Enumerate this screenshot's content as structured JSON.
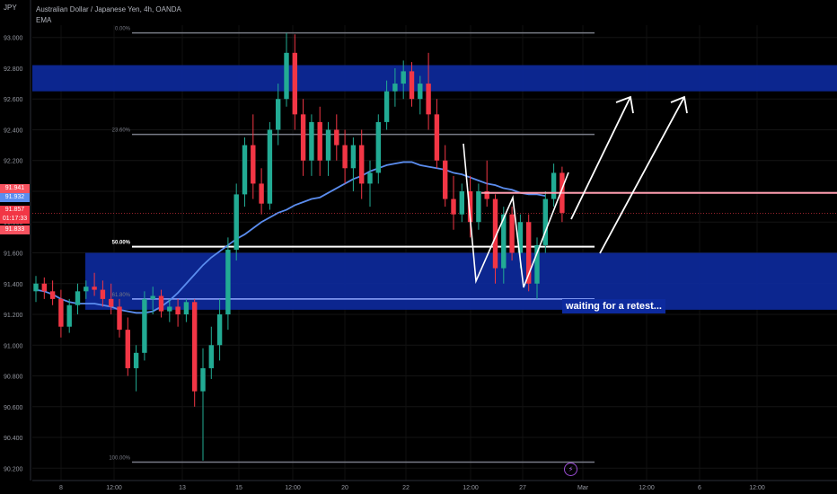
{
  "header": {
    "ticker": "JPY",
    "title": "Australian Dollar / Japanese Yen, 4h, OANDA",
    "indicator": "EMA"
  },
  "price_tags": [
    {
      "value": "91.941",
      "color": "#f7525f",
      "text_color": "#ffffff"
    },
    {
      "value": "91.932",
      "color": "#5b8def",
      "text_color": "#ffffff"
    },
    {
      "value": "91.857",
      "color": "#f23645",
      "text_color": "#ffffff"
    },
    {
      "value": "01:17:33",
      "color": "#f23645",
      "text_color": "#ffffff"
    },
    {
      "value": "91.833",
      "color": "#f7525f",
      "text_color": "#ffffff"
    }
  ],
  "annotation": "waiting for a retest...",
  "colors": {
    "up": "#22ab94",
    "down": "#f23645",
    "zone": "#0d2a9e",
    "ema": "#5b8def",
    "fib": "#787b86",
    "arrow": "#ffffff",
    "resistance": "#ff9eb0"
  },
  "chart_data": {
    "type": "candlestick",
    "y_axis": {
      "range": [
        90.12,
        93.08
      ],
      "ticks": [
        "93.000",
        "92.800",
        "92.600",
        "92.400",
        "92.200",
        "92.000",
        "91.800",
        "91.600",
        "91.400",
        "91.200",
        "91.000",
        "90.800",
        "90.600",
        "90.400",
        "90.200"
      ]
    },
    "x_axis": {
      "ticks": [
        "8",
        "12:00",
        "13",
        "15",
        "12:00",
        "20",
        "22",
        "12:00",
        "27",
        "Mar",
        "12:00",
        "6",
        "12:00"
      ]
    },
    "fib_levels": [
      {
        "label": "0.00%",
        "price": 93.03
      },
      {
        "label": "23.60%",
        "price": 92.37
      },
      {
        "label": "50.00%",
        "price": 91.64
      },
      {
        "label": "61.80%",
        "price": 91.3
      },
      {
        "label": "100.00%",
        "price": 90.24
      }
    ],
    "zones": [
      {
        "name": "supply",
        "from": 92.65,
        "to": 92.82
      },
      {
        "name": "demand",
        "from": 91.23,
        "to": 91.6
      }
    ],
    "resistance_line": 91.99,
    "current_price": 91.857,
    "ema": [
      91.36,
      91.35,
      91.33,
      91.3,
      91.28,
      91.27,
      91.27,
      91.27,
      91.26,
      91.25,
      91.23,
      91.22,
      91.21,
      91.21,
      91.22,
      91.25,
      91.29,
      91.34,
      91.4,
      91.46,
      91.52,
      91.57,
      91.61,
      91.65,
      91.69,
      91.72,
      91.76,
      91.8,
      91.83,
      91.86,
      91.88,
      91.91,
      91.93,
      91.95,
      91.96,
      91.99,
      92.02,
      92.05,
      92.08,
      92.1,
      92.13,
      92.15,
      92.17,
      92.18,
      92.19,
      92.19,
      92.17,
      92.16,
      92.15,
      92.14,
      92.12,
      92.11,
      92.09,
      92.07,
      92.05,
      92.04,
      92.02,
      92.01,
      91.99,
      91.98,
      91.98,
      91.97
    ],
    "candles": [
      [
        91.35,
        91.45,
        91.28,
        91.4
      ],
      [
        91.4,
        91.44,
        91.3,
        91.35
      ],
      [
        91.35,
        91.42,
        91.26,
        91.3
      ],
      [
        91.3,
        91.36,
        91.05,
        91.12
      ],
      [
        91.12,
        91.3,
        91.08,
        91.26
      ],
      [
        91.26,
        91.4,
        91.2,
        91.35
      ],
      [
        91.35,
        91.42,
        91.3,
        91.38
      ],
      [
        91.38,
        91.47,
        91.32,
        91.36
      ],
      [
        91.36,
        91.42,
        91.25,
        91.3
      ],
      [
        91.3,
        91.4,
        91.2,
        91.25
      ],
      [
        91.25,
        91.3,
        91.05,
        91.1
      ],
      [
        91.1,
        91.18,
        90.8,
        90.85
      ],
      [
        90.85,
        91.0,
        90.7,
        90.95
      ],
      [
        90.95,
        91.35,
        90.9,
        91.3
      ],
      [
        91.3,
        91.38,
        91.2,
        91.32
      ],
      [
        91.32,
        91.36,
        91.18,
        91.22
      ],
      [
        91.22,
        91.3,
        91.15,
        91.25
      ],
      [
        91.25,
        91.3,
        91.12,
        91.2
      ],
      [
        91.2,
        91.3,
        91.15,
        91.28
      ],
      [
        91.28,
        91.3,
        90.6,
        90.7
      ],
      [
        90.7,
        90.98,
        90.25,
        90.85
      ],
      [
        90.85,
        91.12,
        90.78,
        91.0
      ],
      [
        91.0,
        91.3,
        90.9,
        91.2
      ],
      [
        91.2,
        91.7,
        91.1,
        91.62
      ],
      [
        91.62,
        92.05,
        91.55,
        91.98
      ],
      [
        91.98,
        92.35,
        91.9,
        92.3
      ],
      [
        92.3,
        92.5,
        91.95,
        92.05
      ],
      [
        92.05,
        92.15,
        91.85,
        91.92
      ],
      [
        91.92,
        92.45,
        91.88,
        92.4
      ],
      [
        92.4,
        92.7,
        92.3,
        92.6
      ],
      [
        92.6,
        93.03,
        92.55,
        92.9
      ],
      [
        92.9,
        93.02,
        92.4,
        92.5
      ],
      [
        92.5,
        92.6,
        92.1,
        92.2
      ],
      [
        92.2,
        92.5,
        92.1,
        92.45
      ],
      [
        92.45,
        92.55,
        92.1,
        92.2
      ],
      [
        92.2,
        92.45,
        92.1,
        92.4
      ],
      [
        92.4,
        92.5,
        92.2,
        92.3
      ],
      [
        92.3,
        92.4,
        92.05,
        92.15
      ],
      [
        92.15,
        92.35,
        92.0,
        92.3
      ],
      [
        92.3,
        92.4,
        91.95,
        92.05
      ],
      [
        92.05,
        92.2,
        91.9,
        92.12
      ],
      [
        92.12,
        92.5,
        92.05,
        92.45
      ],
      [
        92.45,
        92.72,
        92.4,
        92.65
      ],
      [
        92.65,
        92.8,
        92.55,
        92.7
      ],
      [
        92.7,
        92.85,
        92.6,
        92.78
      ],
      [
        92.78,
        92.84,
        92.55,
        92.6
      ],
      [
        92.6,
        92.75,
        92.5,
        92.7
      ],
      [
        92.7,
        92.9,
        92.4,
        92.5
      ],
      [
        92.5,
        92.6,
        92.15,
        92.2
      ],
      [
        92.2,
        92.3,
        91.9,
        91.95
      ],
      [
        91.95,
        92.1,
        91.75,
        91.85
      ],
      [
        91.85,
        92.05,
        91.8,
        92.0
      ],
      [
        92.0,
        92.1,
        91.7,
        91.8
      ],
      [
        91.8,
        92.05,
        91.75,
        92.0
      ],
      [
        92.0,
        92.2,
        91.9,
        91.95
      ],
      [
        91.95,
        91.98,
        91.4,
        91.5
      ],
      [
        91.5,
        91.9,
        91.4,
        91.85
      ],
      [
        91.85,
        91.9,
        91.55,
        91.6
      ],
      [
        91.6,
        91.85,
        91.5,
        91.8
      ],
      [
        91.8,
        91.85,
        91.35,
        91.4
      ],
      [
        91.4,
        91.7,
        91.3,
        91.65
      ],
      [
        91.65,
        92.0,
        91.6,
        91.95
      ],
      [
        91.95,
        92.18,
        91.9,
        92.12
      ],
      [
        92.12,
        92.16,
        91.8,
        91.86
      ]
    ]
  }
}
